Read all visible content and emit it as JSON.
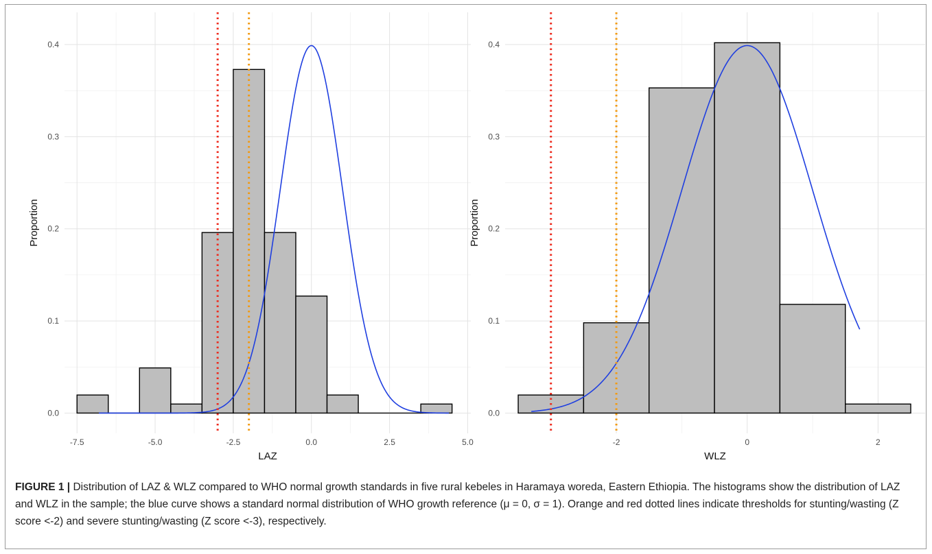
{
  "chart_data": [
    {
      "type": "bar",
      "subtype": "histogram with overlaid normal density curve",
      "xlabel": "LAZ",
      "ylabel": "Proportion",
      "xlim": [
        -7.9,
        5.1
      ],
      "ylim": [
        -0.022,
        0.435
      ],
      "x_ticks": [
        -7.5,
        -5.0,
        -2.5,
        0.0,
        2.5,
        5.0
      ],
      "x_tick_labels": [
        "-7.5",
        "-5.0",
        "-2.5",
        "0.0",
        "2.5",
        "5.0"
      ],
      "y_ticks": [
        0.0,
        0.1,
        0.2,
        0.3,
        0.4
      ],
      "y_tick_labels": [
        "0.0",
        "0.1",
        "0.2",
        "0.3",
        "0.4"
      ],
      "grid": true,
      "bin_width": 1,
      "bins": [
        {
          "x0": -7.5,
          "x1": -6.5,
          "value": 0.0196
        },
        {
          "x0": -6.5,
          "x1": -5.5,
          "value": 0.0
        },
        {
          "x0": -5.5,
          "x1": -4.5,
          "value": 0.049
        },
        {
          "x0": -4.5,
          "x1": -3.5,
          "value": 0.0098
        },
        {
          "x0": -3.5,
          "x1": -2.5,
          "value": 0.196
        },
        {
          "x0": -2.5,
          "x1": -1.5,
          "value": 0.373
        },
        {
          "x0": -1.5,
          "x1": -0.5,
          "value": 0.196
        },
        {
          "x0": -0.5,
          "x1": 0.5,
          "value": 0.127
        },
        {
          "x0": 0.5,
          "x1": 1.5,
          "value": 0.0196
        },
        {
          "x0": 1.5,
          "x1": 2.5,
          "value": 0.0
        },
        {
          "x0": 2.5,
          "x1": 3.5,
          "value": 0.0
        },
        {
          "x0": 3.5,
          "x1": 4.5,
          "value": 0.0098
        }
      ],
      "curve": {
        "mean": 0,
        "sd": 1,
        "x_range": [
          -6.8,
          4.4
        ],
        "color": "#1f3fe0"
      },
      "vlines": [
        {
          "x": -3,
          "color": "#ee2b1e"
        },
        {
          "x": -2,
          "color": "#f29a12"
        }
      ]
    },
    {
      "type": "bar",
      "subtype": "histogram with overlaid normal density curve",
      "xlabel": "WLZ",
      "ylabel": "Proportion",
      "xlim": [
        -3.7,
        2.72
      ],
      "ylim": [
        -0.022,
        0.435
      ],
      "x_ticks": [
        -2,
        0,
        2
      ],
      "x_tick_labels": [
        "-2",
        "0",
        "2"
      ],
      "y_ticks": [
        0.0,
        0.1,
        0.2,
        0.3,
        0.4
      ],
      "y_tick_labels": [
        "0.0",
        "0.1",
        "0.2",
        "0.3",
        "0.4"
      ],
      "grid": true,
      "bin_width": 1,
      "bins": [
        {
          "x0": -3.5,
          "x1": -2.5,
          "value": 0.0196
        },
        {
          "x0": -2.5,
          "x1": -1.5,
          "value": 0.098
        },
        {
          "x0": -1.5,
          "x1": -0.5,
          "value": 0.353
        },
        {
          "x0": -0.5,
          "x1": 0.5,
          "value": 0.402
        },
        {
          "x0": 0.5,
          "x1": 1.5,
          "value": 0.118
        },
        {
          "x0": 1.5,
          "x1": 2.5,
          "value": 0.0098
        }
      ],
      "curve": {
        "mean": 0,
        "sd": 1,
        "x_range": [
          -3.3,
          1.72
        ],
        "color": "#1f3fe0"
      },
      "vlines": [
        {
          "x": -3,
          "color": "#ee2b1e"
        },
        {
          "x": -2,
          "color": "#f29a12"
        }
      ]
    }
  ],
  "caption": {
    "label": "FIGURE 1 |",
    "text": " Distribution of LAZ & WLZ compared to WHO normal growth standards in five rural kebeles in Haramaya woreda, Eastern Ethiopia. The histograms show the distribution of LAZ and WLZ in the sample; the blue curve shows a standard normal distribution of WHO growth reference (μ = 0, σ = 1). Orange and red dotted lines indicate thresholds for stunting/wasting (Z score <-2) and severe stunting/wasting (Z score <-3), respectively."
  }
}
